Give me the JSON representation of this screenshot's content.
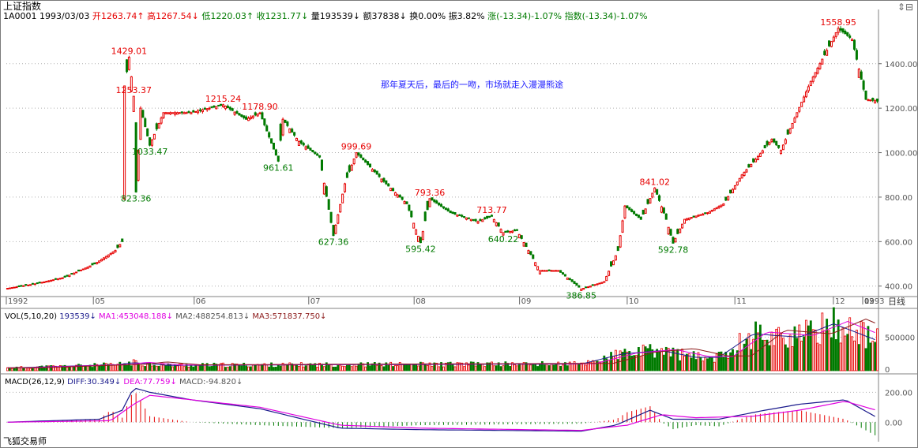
{
  "header": {
    "title": "上证指数",
    "code_date": "1A0001  1993/03/03",
    "open": "开1263.74↑",
    "high": "高1267.54↓",
    "low": "低1220.03↑",
    "close": "收1231.77↓",
    "volume": "量193539↓",
    "amount": "额37838↓",
    "turnover": "换0.00%",
    "amplitude": "振3.82%",
    "change": "涨(-13.34)-1.07%",
    "index_change": "指数(-13.34)-1.07%"
  },
  "annotation": "那年夏天后，最后的一吻，市场就走入漫漫熊途",
  "footer": {
    "brand": "飞狐交易师",
    "period_label": "日线"
  },
  "vol_panel": {
    "params": "VOL(5,10,20)",
    "value": "193539↓",
    "ma1": "MA1:453048.188↓",
    "ma2": "MA2:488254.813↓",
    "ma3": "MA3:571837.750↓",
    "axis_labels": [
      "500000",
      "0"
    ]
  },
  "macd_panel": {
    "params": "MACD(26,12,9)",
    "diff": "DIFF:30.349↓",
    "dea": "DEA:77.759↓",
    "macd": "MACD:-94.820↓",
    "axis_labels": [
      "200.00",
      "0.00"
    ]
  },
  "colors": {
    "up": "#e60000",
    "down": "#007a00",
    "ma1": "#1a1a8c",
    "ma2": "#e000e0",
    "grid": "#b0b0b0"
  },
  "chart_data": {
    "type": "candlestick",
    "title": "上证指数",
    "x_tick_labels": [
      "1992",
      "05",
      "06",
      "07",
      "08",
      "09",
      "10",
      "11",
      "12",
      "1993",
      "02",
      "03"
    ],
    "y_ticks": [
      400,
      600,
      800,
      1000,
      1200,
      1400
    ],
    "ylim": [
      360,
      1580
    ],
    "price_labels": [
      {
        "text": "1429.01",
        "value": 1429.01,
        "kind": "high"
      },
      {
        "text": "1253.37",
        "value": 1253.37,
        "kind": "high"
      },
      {
        "text": "823.36",
        "value": 823.36,
        "kind": "low"
      },
      {
        "text": "1033.47",
        "value": 1033.47,
        "kind": "low"
      },
      {
        "text": "1215.24",
        "value": 1215.24,
        "kind": "high"
      },
      {
        "text": "1178.90",
        "value": 1178.9,
        "kind": "high"
      },
      {
        "text": "961.61",
        "value": 961.61,
        "kind": "low"
      },
      {
        "text": "999.69",
        "value": 999.69,
        "kind": "high"
      },
      {
        "text": "627.36",
        "value": 627.36,
        "kind": "low"
      },
      {
        "text": "793.36",
        "value": 793.36,
        "kind": "high"
      },
      {
        "text": "595.42",
        "value": 595.42,
        "kind": "low"
      },
      {
        "text": "713.77",
        "value": 713.77,
        "kind": "high"
      },
      {
        "text": "640.22",
        "value": 640.22,
        "kind": "low"
      },
      {
        "text": "386.85",
        "value": 386.85,
        "kind": "low"
      },
      {
        "text": "841.02",
        "value": 841.02,
        "kind": "high"
      },
      {
        "text": "592.78",
        "value": 592.78,
        "kind": "low"
      },
      {
        "text": "1558.95",
        "value": 1558.95,
        "kind": "high"
      }
    ],
    "price_path": [
      {
        "i": 0,
        "v": 390
      },
      {
        "i": 12,
        "v": 410
      },
      {
        "i": 25,
        "v": 440
      },
      {
        "i": 38,
        "v": 500
      },
      {
        "i": 47,
        "v": 560
      },
      {
        "i": 50,
        "v": 600
      },
      {
        "i": 51,
        "v": 1300
      },
      {
        "i": 53,
        "v": 1429.01
      },
      {
        "i": 55,
        "v": 1253.37
      },
      {
        "i": 56,
        "v": 823.36
      },
      {
        "i": 58,
        "v": 1200
      },
      {
        "i": 62,
        "v": 1033.47
      },
      {
        "i": 68,
        "v": 1180
      },
      {
        "i": 80,
        "v": 1180
      },
      {
        "i": 94,
        "v": 1215.24
      },
      {
        "i": 104,
        "v": 1150
      },
      {
        "i": 110,
        "v": 1178.9
      },
      {
        "i": 118,
        "v": 961.61
      },
      {
        "i": 120,
        "v": 1150
      },
      {
        "i": 127,
        "v": 1050
      },
      {
        "i": 136,
        "v": 980
      },
      {
        "i": 142,
        "v": 627.36
      },
      {
        "i": 147,
        "v": 860
      },
      {
        "i": 152,
        "v": 999.69
      },
      {
        "i": 165,
        "v": 860
      },
      {
        "i": 174,
        "v": 770
      },
      {
        "i": 180,
        "v": 595.42
      },
      {
        "i": 184,
        "v": 793.36
      },
      {
        "i": 193,
        "v": 730
      },
      {
        "i": 205,
        "v": 690
      },
      {
        "i": 211,
        "v": 713.77
      },
      {
        "i": 216,
        "v": 640.22
      },
      {
        "i": 222,
        "v": 650
      },
      {
        "i": 232,
        "v": 470
      },
      {
        "i": 240,
        "v": 470
      },
      {
        "i": 250,
        "v": 386.85
      },
      {
        "i": 260,
        "v": 420
      },
      {
        "i": 266,
        "v": 560
      },
      {
        "i": 269,
        "v": 760
      },
      {
        "i": 276,
        "v": 700
      },
      {
        "i": 282,
        "v": 841.02
      },
      {
        "i": 287,
        "v": 700
      },
      {
        "i": 290,
        "v": 592.78
      },
      {
        "i": 295,
        "v": 700
      },
      {
        "i": 305,
        "v": 730
      },
      {
        "i": 312,
        "v": 770
      },
      {
        "i": 320,
        "v": 900
      },
      {
        "i": 326,
        "v": 970
      },
      {
        "i": 333,
        "v": 1060
      },
      {
        "i": 337,
        "v": 1010
      },
      {
        "i": 344,
        "v": 1180
      },
      {
        "i": 350,
        "v": 1320
      },
      {
        "i": 358,
        "v": 1480
      },
      {
        "i": 362,
        "v": 1558.95
      },
      {
        "i": 368,
        "v": 1510
      },
      {
        "i": 374,
        "v": 1240
      },
      {
        "i": 379,
        "v": 1231.77
      }
    ],
    "volume_path": [
      {
        "i": 0,
        "v": 40000
      },
      {
        "i": 48,
        "v": 90000
      },
      {
        "i": 55,
        "v": 120000
      },
      {
        "i": 70,
        "v": 80000
      },
      {
        "i": 150,
        "v": 90000
      },
      {
        "i": 250,
        "v": 100000
      },
      {
        "i": 268,
        "v": 250000
      },
      {
        "i": 285,
        "v": 300000
      },
      {
        "i": 300,
        "v": 200000
      },
      {
        "i": 310,
        "v": 200000
      },
      {
        "i": 325,
        "v": 550000
      },
      {
        "i": 345,
        "v": 500000
      },
      {
        "i": 360,
        "v": 700000
      },
      {
        "i": 379,
        "v": 450000
      }
    ],
    "macd_diff_path": [
      {
        "i": 0,
        "v": 0
      },
      {
        "i": 40,
        "v": 20
      },
      {
        "i": 50,
        "v": 80
      },
      {
        "i": 55,
        "v": 230
      },
      {
        "i": 62,
        "v": 200
      },
      {
        "i": 80,
        "v": 150
      },
      {
        "i": 110,
        "v": 90
      },
      {
        "i": 145,
        "v": -40
      },
      {
        "i": 180,
        "v": -50
      },
      {
        "i": 250,
        "v": -60
      },
      {
        "i": 265,
        "v": -20
      },
      {
        "i": 280,
        "v": 80
      },
      {
        "i": 290,
        "v": 20
      },
      {
        "i": 310,
        "v": 20
      },
      {
        "i": 330,
        "v": 80
      },
      {
        "i": 345,
        "v": 120
      },
      {
        "i": 365,
        "v": 150
      },
      {
        "i": 379,
        "v": 30
      }
    ],
    "macd_dea_path": [
      {
        "i": 0,
        "v": 0
      },
      {
        "i": 45,
        "v": 10
      },
      {
        "i": 55,
        "v": 120
      },
      {
        "i": 62,
        "v": 180
      },
      {
        "i": 80,
        "v": 150
      },
      {
        "i": 110,
        "v": 100
      },
      {
        "i": 145,
        "v": -20
      },
      {
        "i": 180,
        "v": -40
      },
      {
        "i": 250,
        "v": -55
      },
      {
        "i": 270,
        "v": -20
      },
      {
        "i": 285,
        "v": 50
      },
      {
        "i": 300,
        "v": 30
      },
      {
        "i": 325,
        "v": 40
      },
      {
        "i": 345,
        "v": 80
      },
      {
        "i": 365,
        "v": 140
      },
      {
        "i": 379,
        "v": 78
      }
    ]
  }
}
